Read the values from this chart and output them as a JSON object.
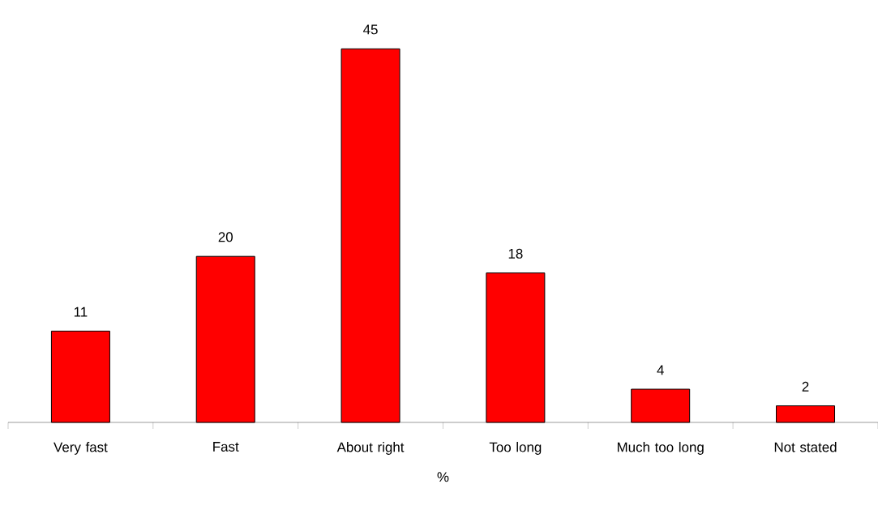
{
  "chart_data": {
    "type": "bar",
    "xlabel": "%",
    "categories": [
      "Very fast",
      "Fast",
      "About right",
      "Too long",
      "Much too long",
      "Not stated"
    ],
    "values": [
      11,
      20,
      45,
      18,
      4,
      2
    ],
    "color": "#ff0000",
    "data_labels": true
  }
}
